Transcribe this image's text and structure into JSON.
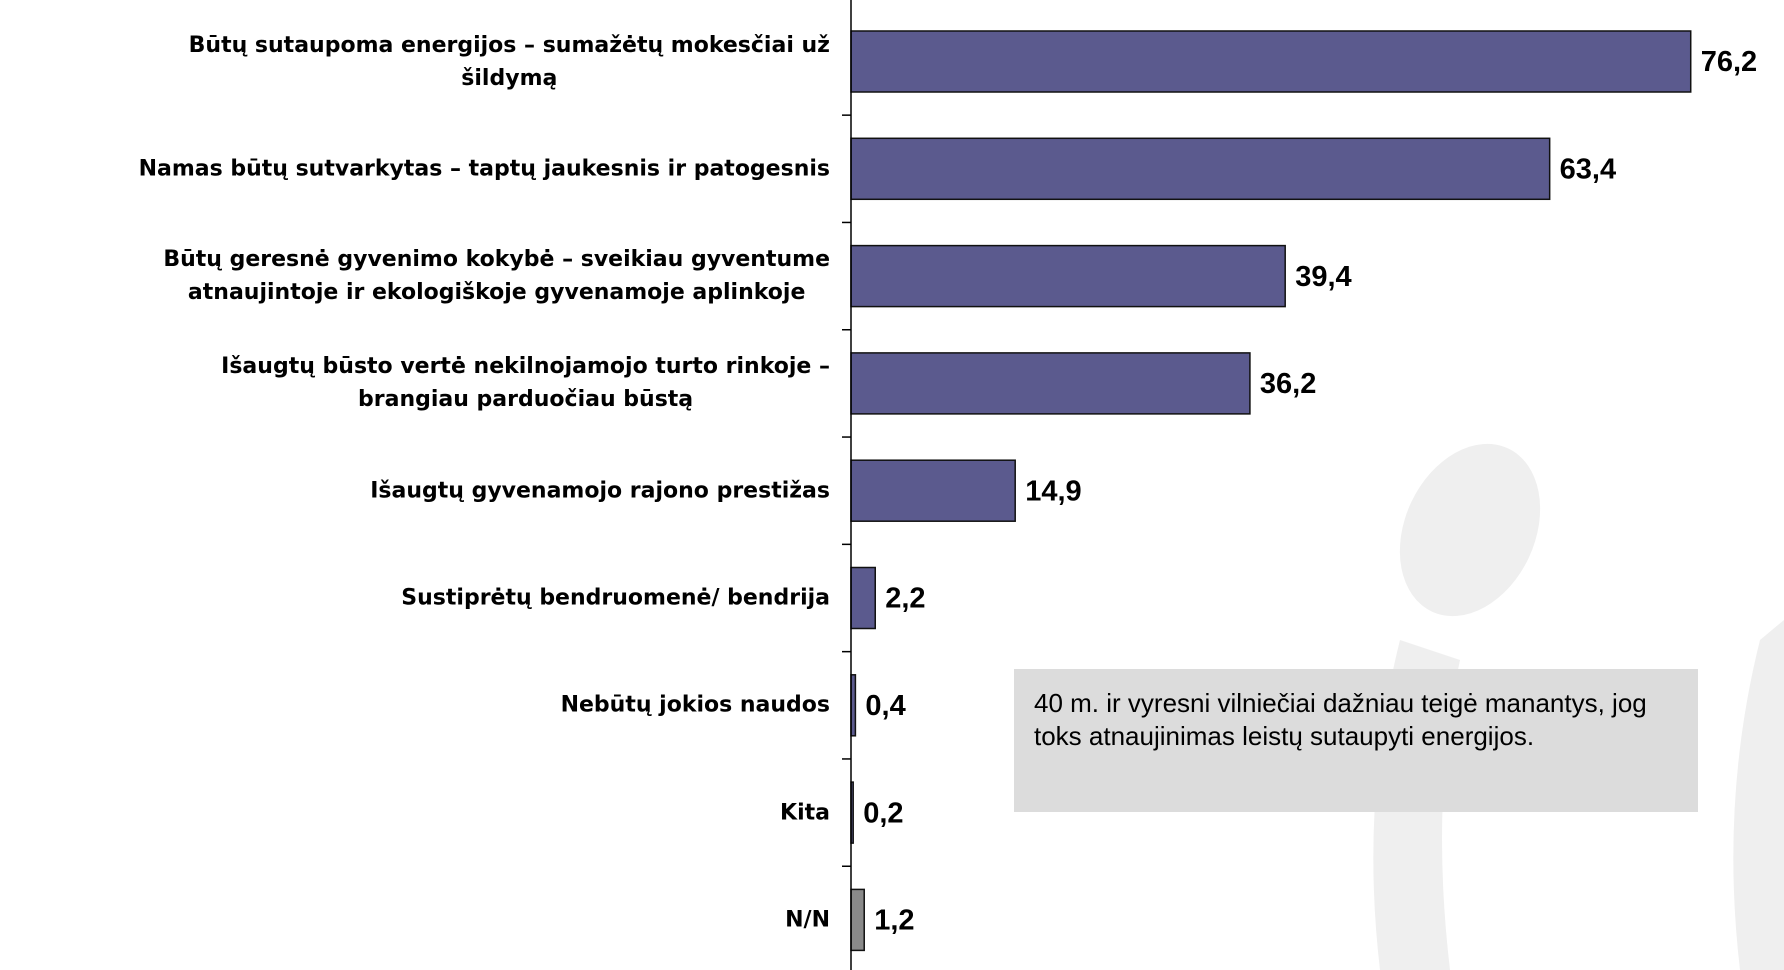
{
  "chart_data": {
    "type": "hbar",
    "categories": [
      "Būtų sutaupoma energijos – sumažėtų mokesčiai už\nšildymą",
      "Namas būtų sutvarkytas – taptų jaukesnis ir patogesnis",
      "Būtų geresnė gyvenimo kokybė – sveikiau gyventume\natnaujintoje ir ekologiškoje gyvenamoje aplinkoje",
      "Išaugtų būsto vertė nekilnojamojo turto rinkoje –\nbrangiau parduočiau būstą",
      "Išaugtų gyvenamojo rajono prestižas",
      "Sustiprėtų bendruomenė/ bendrija",
      "Nebūtų jokios naudos",
      "Kita",
      "N/N"
    ],
    "values": [
      76.2,
      63.4,
      39.4,
      36.2,
      14.9,
      2.2,
      0.4,
      0.2,
      1.2
    ],
    "value_labels": [
      "76,2",
      "63,4",
      "39,4",
      "36,2",
      "14,9",
      "2,2",
      "0,4",
      "0,2",
      "1,2"
    ],
    "colors": [
      "#5b5a8e",
      "#5b5a8e",
      "#5b5a8e",
      "#5b5a8e",
      "#5b5a8e",
      "#5b5a8e",
      "#5b5a8e",
      "#5b5a8e",
      "#8a8a8a"
    ],
    "annotation": "40 m. ir vyresni vilniečiai dažniau teigė manantys, jog toks atnaujinimas leistų sutaupyti energijos."
  }
}
